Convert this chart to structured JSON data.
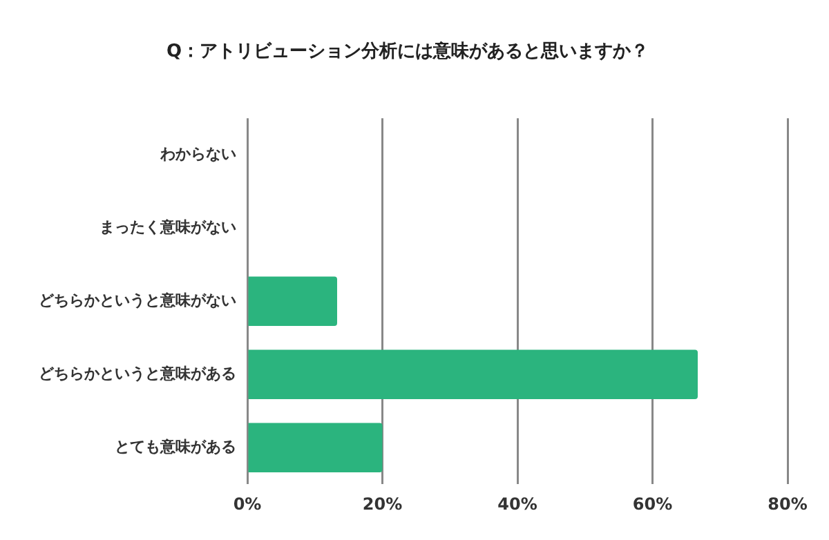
{
  "chart_data": {
    "type": "bar",
    "orientation": "horizontal",
    "title": "Q：アトリビューション分析には意味があると思いますか？",
    "categories": [
      "わからない",
      "まったく意味がない",
      "どちらかというと意味がない",
      "どちらかというと意味がある",
      "とても意味がある"
    ],
    "values": [
      0,
      0,
      13.3,
      66.7,
      20
    ],
    "color": "#2bb47e",
    "xlim": [
      0,
      80
    ],
    "xticks": [
      {
        "value": 0,
        "label": "0%"
      },
      {
        "value": 20,
        "label": "20%"
      },
      {
        "value": 40,
        "label": "40%"
      },
      {
        "value": 60,
        "label": "60%"
      },
      {
        "value": 80,
        "label": "80%"
      }
    ],
    "grid": "x",
    "legend": false
  }
}
